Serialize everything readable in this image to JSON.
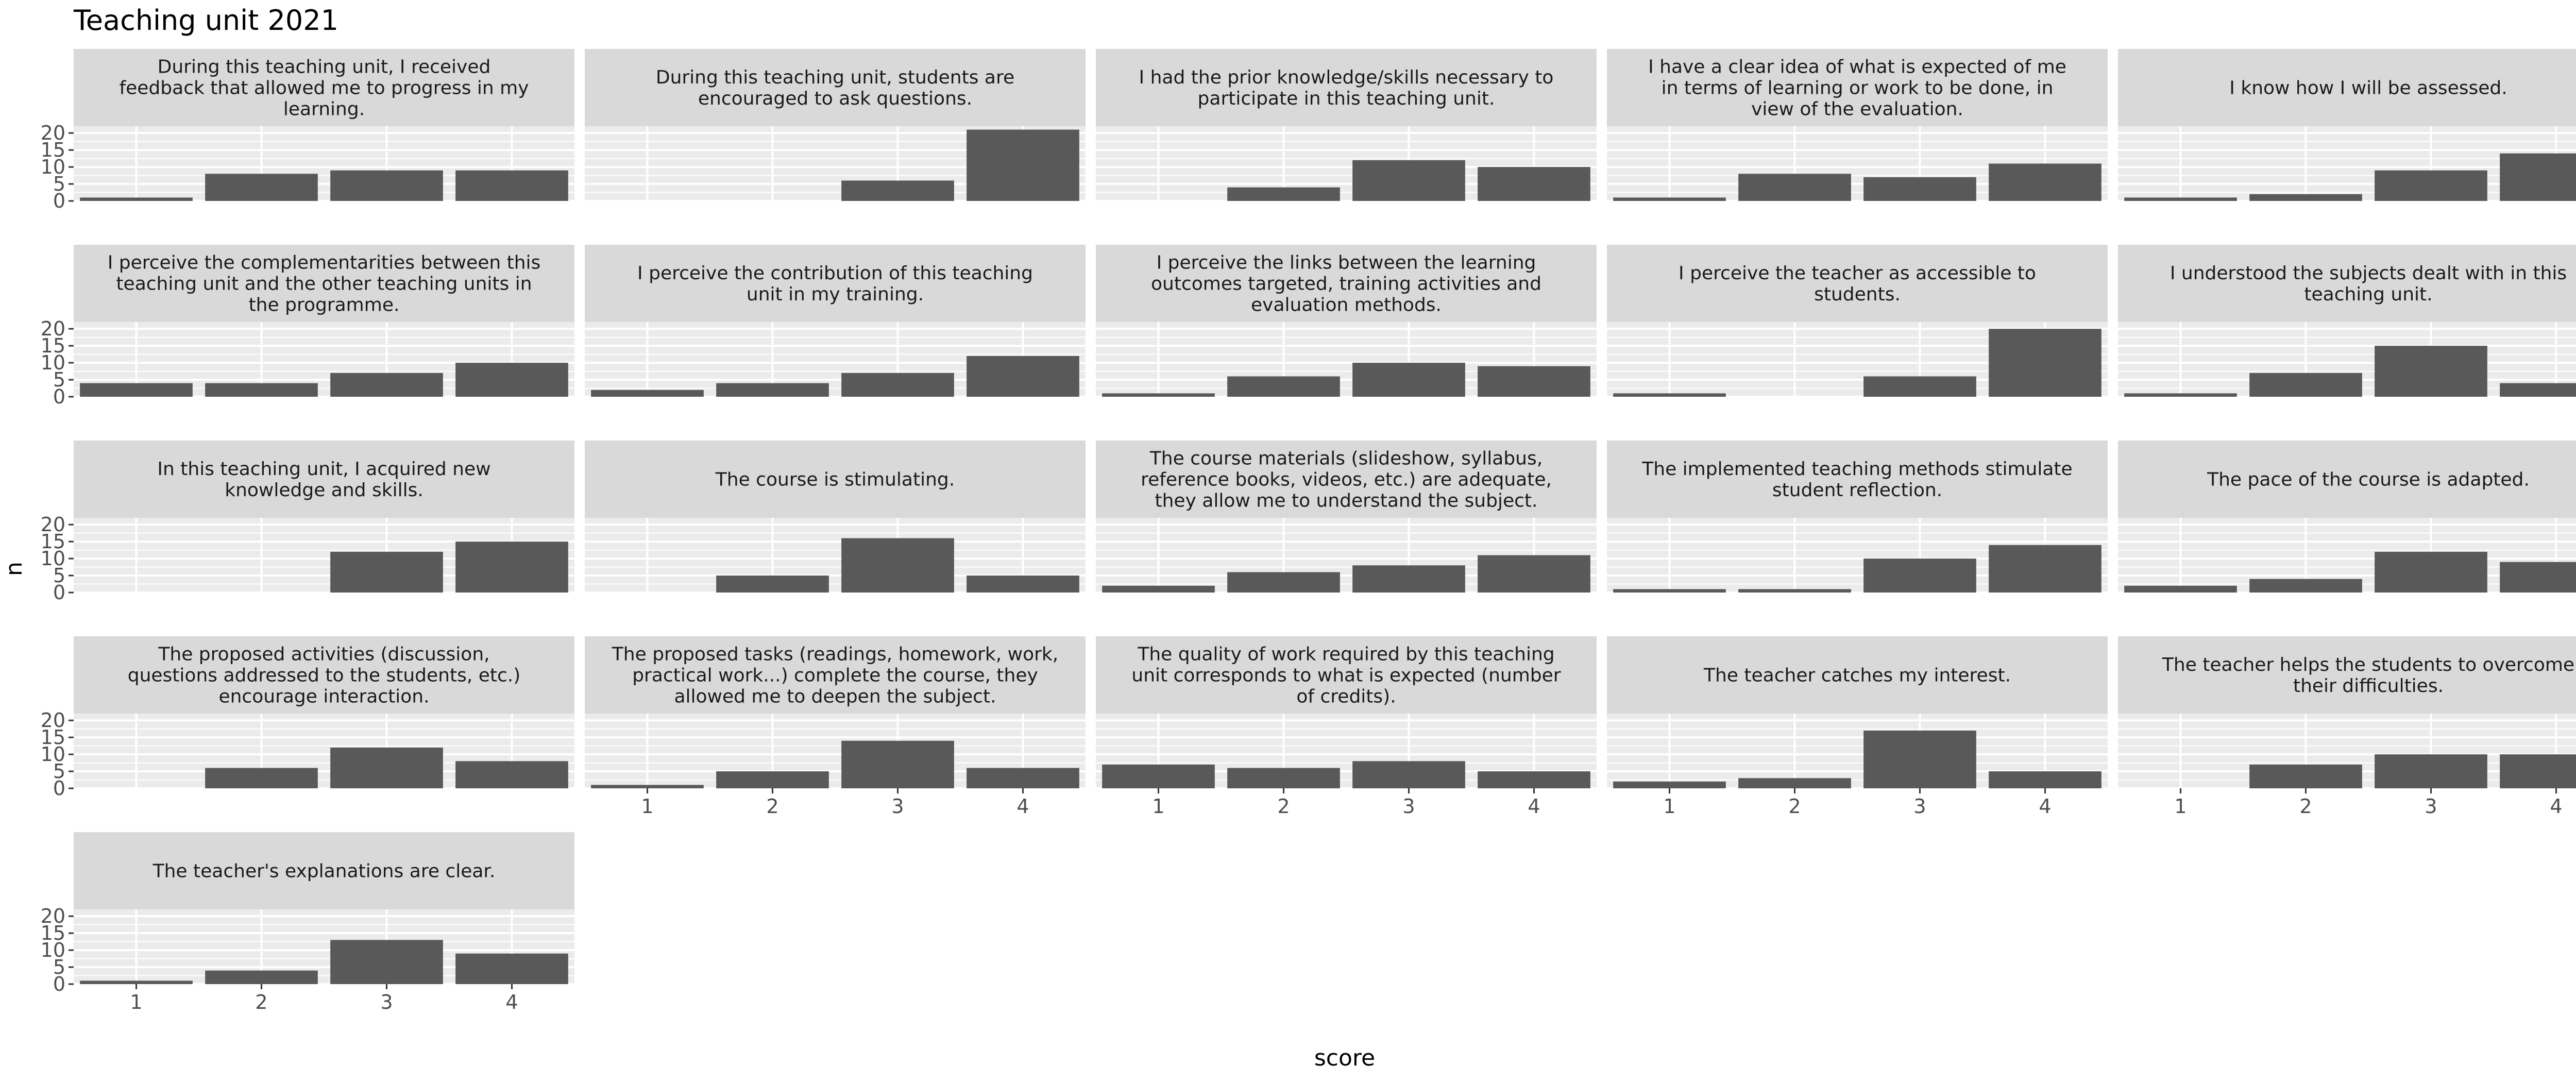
{
  "chart_data": {
    "type": "bar",
    "title": "Teaching unit 2021",
    "xlabel": "score",
    "ylabel": "n",
    "categories": [
      "1",
      "2",
      "3",
      "4"
    ],
    "ylim": [
      0,
      22
    ],
    "y_ticks": [
      0,
      5,
      10,
      15,
      20
    ],
    "grid": true,
    "colors": {
      "bar": "#595959",
      "panel_background": "#EBEBEB",
      "grid": "#FFFFFF",
      "strip_background": "#D9D9D9",
      "text": "#1A1A1A",
      "tick_label": "#4D4D4D"
    },
    "panels": [
      {
        "title": "During this teaching unit, I received feedback that allowed me to progress in my learning.",
        "values": [
          1,
          8,
          9,
          9
        ]
      },
      {
        "title": "During this teaching unit, students are encouraged to ask questions.",
        "values": [
          0,
          0,
          6,
          21
        ]
      },
      {
        "title": "I had the prior knowledge/skills necessary to participate in this teaching unit.",
        "values": [
          0,
          4,
          12,
          10
        ]
      },
      {
        "title": "I have a clear idea of what is expected of me in terms of learning or work to be done, in view of the evaluation.",
        "values": [
          1,
          8,
          7,
          11
        ]
      },
      {
        "title": "I know how I will be assessed.",
        "values": [
          1,
          2,
          9,
          14
        ]
      },
      {
        "title": "I perceive the complementarities between this teaching unit and the other teaching units in the programme.",
        "values": [
          4,
          4,
          7,
          10
        ]
      },
      {
        "title": "I perceive the contribution of this teaching unit in my training.",
        "values": [
          2,
          4,
          7,
          12
        ]
      },
      {
        "title": "I perceive the links between the learning outcomes targeted, training activities and evaluation methods.",
        "values": [
          1,
          6,
          10,
          9
        ]
      },
      {
        "title": "I perceive the teacher as accessible to students.",
        "values": [
          1,
          0,
          6,
          20
        ]
      },
      {
        "title": "I understood the subjects dealt with in this teaching unit.",
        "values": [
          1,
          7,
          15,
          4
        ]
      },
      {
        "title": "In this teaching unit, I acquired new knowledge and skills.",
        "values": [
          0,
          0,
          12,
          15
        ]
      },
      {
        "title": "The course is stimulating.",
        "values": [
          0,
          5,
          16,
          5
        ]
      },
      {
        "title": "The course materials (slideshow, syllabus, reference books, videos, etc.) are adequate, they allow me to understand the subject.",
        "values": [
          2,
          6,
          8,
          11
        ]
      },
      {
        "title": "The implemented teaching methods stimulate student reflection.",
        "values": [
          1,
          1,
          10,
          14
        ]
      },
      {
        "title": "The pace of the course is adapted.",
        "values": [
          2,
          4,
          12,
          9
        ]
      },
      {
        "title": "The proposed activities (discussion, questions addressed to the students, etc.) encourage interaction.",
        "values": [
          0,
          6,
          12,
          8
        ]
      },
      {
        "title": "The proposed tasks (readings, homework, work, practical work...) complete the course, they allowed me to deepen the subject.",
        "values": [
          1,
          5,
          14,
          6
        ]
      },
      {
        "title": "The quality of work required by this teaching unit corresponds to what is expected (number of credits).",
        "values": [
          7,
          6,
          8,
          5
        ]
      },
      {
        "title": "The teacher catches my interest.",
        "values": [
          2,
          3,
          17,
          5
        ]
      },
      {
        "title": "The teacher helps the students to overcome their difficulties.",
        "values": [
          0,
          7,
          10,
          10
        ]
      },
      {
        "title": "The teacher's explanations are clear.",
        "values": [
          1,
          4,
          13,
          9
        ]
      }
    ]
  }
}
